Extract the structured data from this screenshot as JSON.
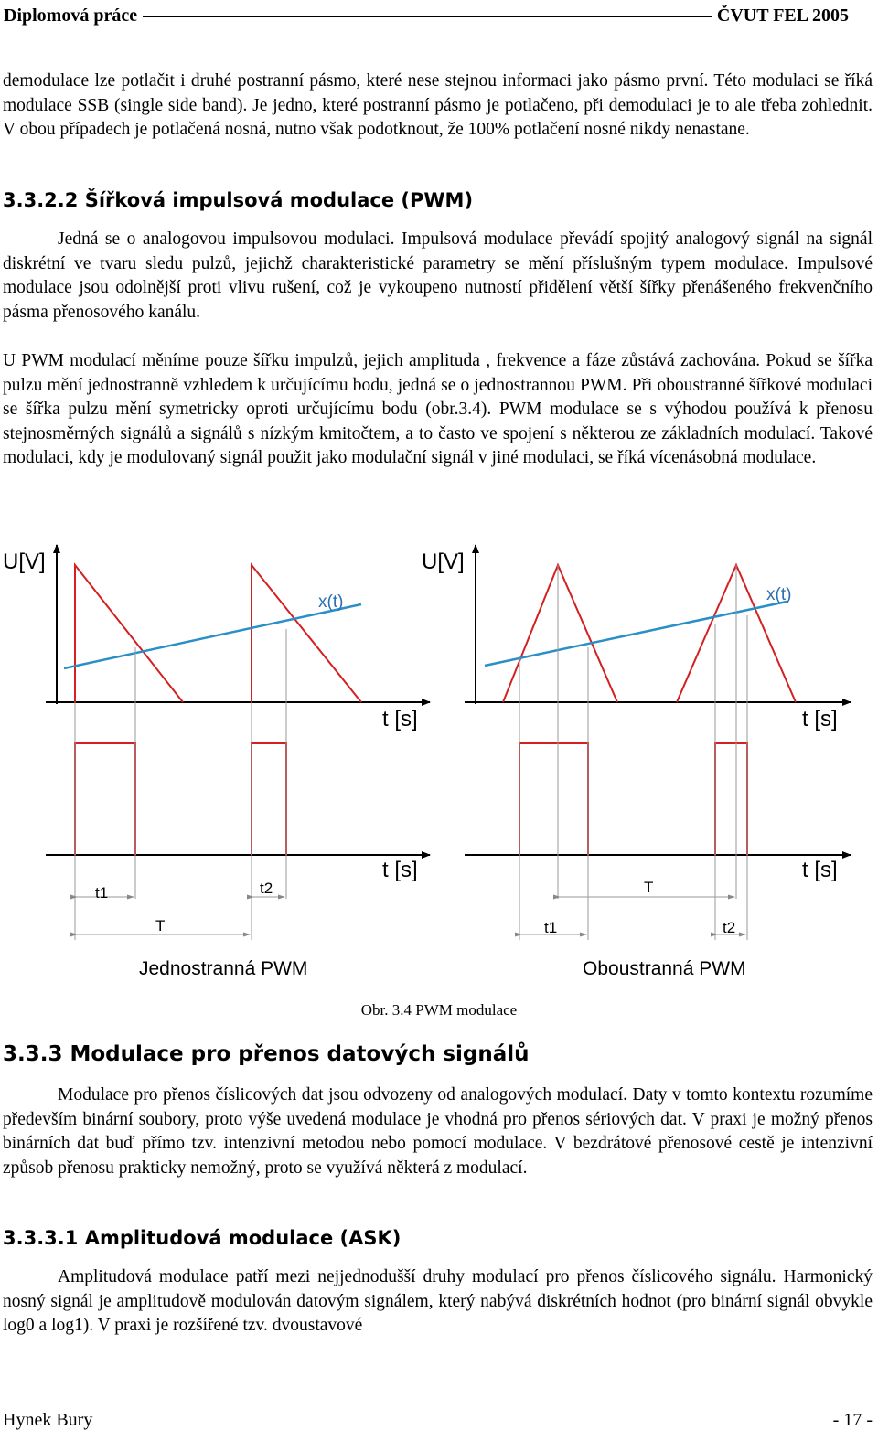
{
  "header": {
    "left": "Diplomová práce",
    "right": "ČVUT FEL 2005"
  },
  "paragraphs": {
    "p1": "demodulace lze potlačit i druhé postranní pásmo, které nese stejnou informaci jako pásmo první. Této modulaci se říká modulace SSB (single side band). Je jedno, které postranní pásmo je potlačeno, při demodulaci je to ale třeba zohlednit. V obou případech je potlačená nosná, nutno však podotknout, že 100% potlačení nosné nikdy nenastane.",
    "p2": "Jedná se o analogovou impulsovou modulaci. Impulsová modulace převádí spojitý analogový signál na signál diskrétní ve tvaru sledu pulzů, jejichž charakteristické parametry se mění příslušným typem modulace. Impulsové modulace jsou odolnější proti vlivu rušení, což je vykoupeno nutností přidělení větší šířky přenášeného frekvenčního pásma přenosového kanálu.",
    "p3": "U PWM modulací měníme pouze šířku impulzů, jejich amplituda , frekvence a fáze zůstává zachována. Pokud se šířka pulzu mění jednostranně vzhledem k určujícímu bodu, jedná se o jednostrannou PWM. Při oboustranné šířkové modulaci se šířka pulzu mění symetricky oproti určujícímu bodu (obr.3.4). PWM modulace se s výhodou používá k přenosu stejnosměrných signálů a signálů s nízkým kmitočtem, a to často ve spojení s některou ze základních modulací. Takové modulaci, kdy je modulovaný signál použit jako modulační signál v jiné modulaci, se říká vícenásobná modulace.",
    "p4": "Modulace pro přenos číslicových dat jsou odvozeny od analogových modulací. Daty v tomto kontextu rozumíme především binární soubory, proto výše uvedená modulace je vhodná pro přenos sériových dat. V praxi je možný přenos binárních dat buď přímo tzv. intenzivní metodou nebo pomocí modulace. V bezdrátové přenosové cestě je intenzivní způsob přenosu prakticky nemožný, proto se využívá některá z modulací.",
    "p5": "Amplitudová modulace patří mezi nejjednodušší druhy modulací pro přenos číslicového signálu. Harmonický nosný signál je amplitudově modulován datovým signálem, který nabývá diskrétních hodnot (pro binární signál obvykle log0 a log1). V praxi je rozšířené tzv. dvoustavové"
  },
  "headings": {
    "h1": "3.3.2.2 Šířková impulsová modulace (PWM)",
    "h2": "3.3.3 Modulace pro přenos datových signálů",
    "h3": "3.3.3.1 Amplitudová modulace (ASK)"
  },
  "figure": {
    "left": {
      "y_axis": "U[V]",
      "signal": "x(t)",
      "t_axis_top": "t [s]",
      "t_axis_bottom": "t [s]",
      "t1": "t1",
      "t2": "t2",
      "period": "T",
      "title": "Jednostranná PWM"
    },
    "right": {
      "y_axis": "U[V]",
      "signal": "x(t)",
      "t_axis_top": "t [s]",
      "t_axis_bottom": "t [s]",
      "t1": "t1",
      "t2": "t2",
      "period": "T",
      "title": "Oboustranná PWM"
    },
    "caption": "Obr. 3.4 PWM modulace",
    "colors": {
      "signal_line": "#2a8fc7",
      "guides": "#9a9a9a"
    }
  },
  "footer": {
    "author": "Hynek Bury",
    "page": "- 17 -"
  }
}
